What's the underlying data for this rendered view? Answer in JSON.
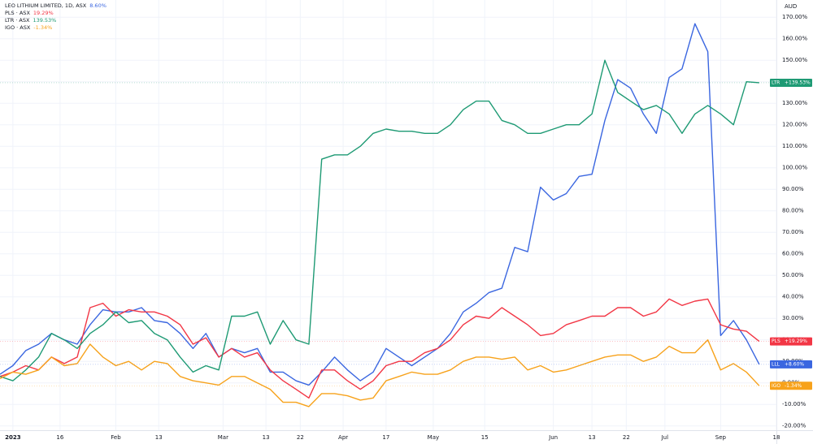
{
  "chart_data": {
    "type": "line",
    "axis_unit": "AUD",
    "x": [
      0,
      3,
      6,
      9,
      12,
      15,
      18,
      21,
      24,
      27,
      30,
      33,
      36,
      39,
      42,
      45,
      48,
      51,
      54,
      57,
      60,
      63,
      66,
      69,
      72,
      75,
      78,
      81,
      84,
      87,
      90,
      93,
      96,
      99,
      102,
      105,
      108,
      111,
      114,
      117,
      120,
      123,
      126,
      129,
      132,
      135,
      138,
      141,
      144,
      147,
      150,
      153,
      156,
      159,
      162,
      165,
      168,
      171,
      174,
      177
    ],
    "xlim": [
      0,
      181
    ],
    "xticks": [
      {
        "value": 3,
        "label": "2023"
      },
      {
        "value": 14,
        "label": "16"
      },
      {
        "value": 27,
        "label": "Feb"
      },
      {
        "value": 37,
        "label": "13"
      },
      {
        "value": 52,
        "label": "Mar"
      },
      {
        "value": 62,
        "label": "13"
      },
      {
        "value": 70,
        "label": "22"
      },
      {
        "value": 80,
        "label": "Apr"
      },
      {
        "value": 90,
        "label": "17"
      },
      {
        "value": 101,
        "label": "May"
      },
      {
        "value": 113,
        "label": "15"
      },
      {
        "value": 129,
        "label": "Jun"
      },
      {
        "value": 138,
        "label": "13"
      },
      {
        "value": 146,
        "label": "22"
      },
      {
        "value": 155,
        "label": "Jul"
      },
      {
        "value": 168,
        "label": "Sep"
      },
      {
        "value": 181,
        "label": "18"
      }
    ],
    "ylim": [
      -22,
      178
    ],
    "yticks": [
      {
        "value": -20,
        "label": "-20.00%"
      },
      {
        "value": -10,
        "label": "-10.00%"
      },
      {
        "value": 0,
        "label": "0.00%"
      },
      {
        "value": 10,
        "label": "10.00%"
      },
      {
        "value": 20,
        "label": "20.00%"
      },
      {
        "value": 30,
        "label": "30.00%"
      },
      {
        "value": 40,
        "label": "40.00%"
      },
      {
        "value": 50,
        "label": "50.00%"
      },
      {
        "value": 60,
        "label": "60.00%"
      },
      {
        "value": 70,
        "label": "70.00%"
      },
      {
        "value": 80,
        "label": "80.00%"
      },
      {
        "value": 90,
        "label": "90.00%"
      },
      {
        "value": 100,
        "label": "100.00%"
      },
      {
        "value": 110,
        "label": "110.00%"
      },
      {
        "value": 120,
        "label": "120.00%"
      },
      {
        "value": 130,
        "label": "130.00%"
      },
      {
        "value": 140,
        "label": "140.00%"
      },
      {
        "value": 150,
        "label": "150.00%"
      },
      {
        "value": 160,
        "label": "160.00%"
      },
      {
        "value": 170,
        "label": "170.00%"
      }
    ],
    "grid": true,
    "series": [
      {
        "name": "LEO LITHIUM LIMITED, 1D, ASX",
        "tag": "LLL",
        "legend_value": "8.60%",
        "tag_value": "+8.60%",
        "color": "#3a66e0",
        "values": [
          4,
          8,
          15,
          18,
          23,
          20,
          18,
          27,
          34,
          33,
          33,
          35,
          29,
          28,
          23,
          16,
          23,
          12,
          16,
          14,
          16,
          5,
          5,
          1,
          -1,
          5,
          12,
          6,
          1,
          5,
          16,
          12,
          8,
          12,
          16,
          23,
          33,
          37,
          42,
          44,
          63,
          61,
          91,
          85,
          88,
          96,
          97,
          122,
          141,
          137,
          125,
          116,
          142,
          146,
          167,
          154,
          22,
          29,
          20,
          8.6
        ]
      },
      {
        "name": "PLS · ASX",
        "tag": "PLS",
        "legend_value": "19.29%",
        "tag_value": "+19.29%",
        "color": "#f23645",
        "values": [
          3,
          5,
          8,
          6,
          12,
          9,
          12,
          35,
          37,
          31,
          34,
          33,
          33,
          31,
          27,
          18,
          21,
          12,
          16,
          12,
          14,
          6,
          1,
          -3,
          -7,
          6,
          6,
          1,
          -3,
          1,
          8,
          10,
          10,
          14,
          16,
          20,
          27,
          31,
          30,
          35,
          31,
          27,
          22,
          23,
          27,
          29,
          31,
          31,
          35,
          35,
          31,
          33,
          39,
          36,
          38,
          39,
          27,
          25,
          24,
          19.29
        ]
      },
      {
        "name": "LTR · ASX",
        "tag": "LTR",
        "legend_value": "139.53%",
        "tag_value": "+139.53%",
        "color": "#1e9a74",
        "values": [
          3,
          1,
          6,
          12,
          23,
          20,
          16,
          23,
          27,
          33,
          28,
          29,
          23,
          20,
          12,
          5,
          8,
          6,
          31,
          31,
          33,
          18,
          29,
          20,
          18,
          104,
          106,
          106,
          110,
          116,
          118,
          117,
          117,
          116,
          116,
          120,
          127,
          131,
          131,
          122,
          120,
          116,
          116,
          118,
          120,
          120,
          125,
          150,
          135,
          131,
          127,
          129,
          125,
          116,
          125,
          129,
          125,
          120,
          140,
          139.53
        ]
      },
      {
        "name": "IGO · ASX",
        "tag": "IGO",
        "legend_value": "-1.34%",
        "tag_value": "-1.34%",
        "color": "#f7a21b",
        "values": [
          2,
          5,
          4,
          6,
          12,
          8,
          9,
          18,
          12,
          8,
          10,
          6,
          10,
          9,
          3,
          1,
          0,
          -1,
          3,
          3,
          0,
          -3,
          -9,
          -9,
          -11,
          -5,
          -5,
          -6,
          -8,
          -7,
          1,
          3,
          5,
          4,
          4,
          6,
          10,
          12,
          12,
          11,
          12,
          6,
          8,
          5,
          6,
          8,
          10,
          12,
          13,
          13,
          10,
          12,
          17,
          14,
          14,
          20,
          6,
          9,
          5,
          -1.34
        ]
      }
    ]
  }
}
